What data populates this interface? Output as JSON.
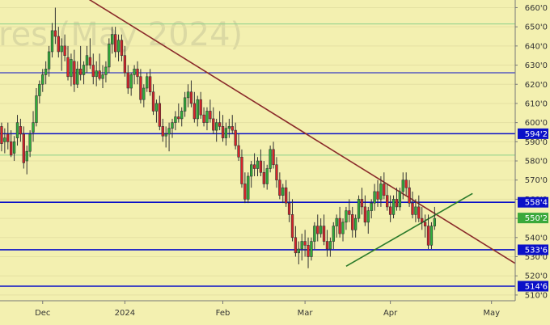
{
  "chart_data": {
    "type": "candlestick",
    "watermark": "res (May 2024)",
    "y_axis": {
      "ylim": [
        507,
        664
      ],
      "ticks": [
        "660'0",
        "650'0",
        "640'0",
        "630'0",
        "620'0",
        "610'0",
        "600'0",
        "590'0",
        "580'0",
        "570'0",
        "560'0",
        "550'0",
        "540'0",
        "530'0",
        "520'0",
        "510'0"
      ]
    },
    "x_axis": {
      "ticks": [
        {
          "label": "Dec",
          "bar": 13
        },
        {
          "label": "2024",
          "bar": 39
        },
        {
          "label": "Feb",
          "bar": 70
        },
        {
          "label": "Mar",
          "bar": 96
        },
        {
          "label": "Apr",
          "bar": 123
        },
        {
          "label": "May",
          "bar": 155
        }
      ],
      "bar_count": 163
    },
    "levels": [
      {
        "value": 594.2,
        "label": "594'2",
        "color": "#0a10c8",
        "badge": true
      },
      {
        "value": 558.4,
        "label": "558'4",
        "color": "#0a10c8",
        "badge": true
      },
      {
        "value": 533.6,
        "label": "533'6",
        "color": "#0a10c8",
        "badge": true
      },
      {
        "value": 514.6,
        "label": "514'6",
        "color": "#0a10c8",
        "badge": true
      },
      {
        "value": 626.0,
        "label": "",
        "color": "#0a10c8",
        "badge": false
      },
      {
        "value": 651.5,
        "label": "",
        "color": "#8ad08a",
        "badge": false
      },
      {
        "value": 583.0,
        "label": "",
        "color": "#8ad08a",
        "badge": false
      }
    ],
    "last_price": {
      "value": 550.2,
      "label": "550'2",
      "color": "#3aa83a"
    },
    "trendlines": [
      {
        "name": "resistance",
        "color": "#8a2a2a",
        "from": [
          27,
          665
        ],
        "to": [
          163,
          526
        ]
      },
      {
        "name": "support",
        "color": "#2a7a2a",
        "from": [
          109,
          525
        ],
        "to": [
          149,
          563
        ]
      }
    ],
    "series": [
      [
        -1,
        604,
        604,
        590,
        593
      ],
      [
        0,
        598,
        600,
        585,
        589
      ],
      [
        1,
        590,
        597,
        584,
        592
      ],
      [
        2,
        594,
        600,
        586,
        590
      ],
      [
        3,
        590,
        596,
        582,
        583
      ],
      [
        4,
        584,
        593,
        580,
        590
      ],
      [
        5,
        592,
        604,
        588,
        600
      ],
      [
        6,
        598,
        602,
        590,
        594
      ],
      [
        7,
        594,
        598,
        576,
        579
      ],
      [
        8,
        580,
        588,
        573,
        585
      ],
      [
        9,
        585,
        596,
        582,
        594
      ],
      [
        10,
        595,
        606,
        590,
        600
      ],
      [
        11,
        600,
        618,
        598,
        614
      ],
      [
        12,
        614,
        622,
        610,
        620
      ],
      [
        13,
        620,
        628,
        616,
        625
      ],
      [
        14,
        625,
        632,
        620,
        628
      ],
      [
        15,
        628,
        640,
        624,
        637
      ],
      [
        16,
        637,
        652,
        634,
        648
      ],
      [
        17,
        648,
        660,
        641,
        645
      ],
      [
        18,
        645,
        650,
        634,
        637
      ],
      [
        19,
        637,
        644,
        627,
        640
      ],
      [
        20,
        640,
        646,
        632,
        635
      ],
      [
        21,
        634,
        640,
        622,
        624
      ],
      [
        22,
        624,
        636,
        619,
        633
      ],
      [
        23,
        632,
        638,
        616,
        620
      ],
      [
        24,
        620,
        632,
        618,
        628
      ],
      [
        25,
        628,
        640,
        622,
        625
      ],
      [
        26,
        625,
        632,
        620,
        630
      ],
      [
        27,
        630,
        640,
        626,
        635
      ],
      [
        28,
        634,
        644,
        628,
        630
      ],
      [
        29,
        630,
        636,
        620,
        624
      ],
      [
        30,
        624,
        632,
        619,
        627
      ],
      [
        31,
        627,
        636,
        622,
        623
      ],
      [
        32,
        623,
        630,
        618,
        625
      ],
      [
        33,
        625,
        632,
        621,
        629
      ],
      [
        34,
        629,
        644,
        626,
        641
      ],
      [
        35,
        641,
        650,
        636,
        646
      ],
      [
        36,
        646,
        650,
        634,
        637
      ],
      [
        37,
        637,
        646,
        632,
        643
      ],
      [
        38,
        643,
        646,
        632,
        635
      ],
      [
        39,
        635,
        640,
        624,
        626
      ],
      [
        40,
        626,
        630,
        615,
        618
      ],
      [
        41,
        618,
        626,
        614,
        625
      ],
      [
        42,
        625,
        630,
        620,
        628
      ],
      [
        43,
        628,
        632,
        620,
        624
      ],
      [
        44,
        624,
        628,
        610,
        612
      ],
      [
        45,
        612,
        620,
        608,
        618
      ],
      [
        46,
        618,
        626,
        616,
        624
      ],
      [
        47,
        624,
        628,
        614,
        616
      ],
      [
        48,
        616,
        620,
        604,
        606
      ],
      [
        49,
        606,
        612,
        600,
        610
      ],
      [
        50,
        610,
        614,
        596,
        598
      ],
      [
        51,
        598,
        602,
        590,
        593
      ],
      [
        52,
        593,
        598,
        587,
        594
      ],
      [
        53,
        594,
        600,
        585,
        597
      ],
      [
        54,
        597,
        602,
        592,
        600
      ],
      [
        55,
        600,
        606,
        596,
        603
      ],
      [
        56,
        603,
        610,
        600,
        602
      ],
      [
        57,
        602,
        608,
        598,
        606
      ],
      [
        58,
        606,
        616,
        603,
        613
      ],
      [
        59,
        613,
        620,
        608,
        616
      ],
      [
        60,
        616,
        622,
        608,
        610
      ],
      [
        61,
        610,
        616,
        600,
        602
      ],
      [
        62,
        602,
        614,
        598,
        612
      ],
      [
        63,
        612,
        616,
        602,
        604
      ],
      [
        64,
        604,
        608,
        598,
        600
      ],
      [
        65,
        600,
        608,
        596,
        606
      ],
      [
        66,
        606,
        612,
        600,
        602
      ],
      [
        67,
        602,
        608,
        594,
        596
      ],
      [
        68,
        596,
        602,
        590,
        600
      ],
      [
        69,
        600,
        606,
        596,
        598
      ],
      [
        70,
        598,
        604,
        590,
        592
      ],
      [
        71,
        592,
        600,
        588,
        597
      ],
      [
        72,
        597,
        602,
        592,
        598
      ],
      [
        73,
        598,
        604,
        594,
        596
      ],
      [
        74,
        596,
        600,
        586,
        588
      ],
      [
        75,
        588,
        594,
        580,
        582
      ],
      [
        76,
        582,
        586,
        566,
        568
      ],
      [
        77,
        568,
        574,
        558,
        560
      ],
      [
        78,
        560,
        574,
        558,
        572
      ],
      [
        79,
        572,
        580,
        566,
        578
      ],
      [
        80,
        578,
        584,
        572,
        576
      ],
      [
        81,
        576,
        582,
        572,
        580
      ],
      [
        82,
        580,
        586,
        572,
        574
      ],
      [
        83,
        574,
        580,
        566,
        568
      ],
      [
        84,
        568,
        578,
        565,
        576
      ],
      [
        85,
        576,
        588,
        574,
        586
      ],
      [
        86,
        586,
        590,
        576,
        578
      ],
      [
        87,
        578,
        582,
        566,
        570
      ],
      [
        88,
        570,
        574,
        560,
        562
      ],
      [
        89,
        562,
        568,
        558,
        566
      ],
      [
        90,
        566,
        570,
        556,
        558
      ],
      [
        91,
        558,
        564,
        548,
        552
      ],
      [
        92,
        552,
        560,
        538,
        540
      ],
      [
        93,
        540,
        546,
        530,
        532
      ],
      [
        94,
        532,
        538,
        526,
        534
      ],
      [
        95,
        534,
        542,
        528,
        538
      ],
      [
        96,
        538,
        544,
        530,
        536
      ],
      [
        97,
        536,
        540,
        524,
        530
      ],
      [
        98,
        530,
        540,
        528,
        538
      ],
      [
        99,
        538,
        548,
        534,
        546
      ],
      [
        100,
        546,
        552,
        538,
        542
      ],
      [
        101,
        542,
        550,
        540,
        546
      ],
      [
        102,
        546,
        552,
        536,
        538
      ],
      [
        103,
        538,
        544,
        530,
        534
      ],
      [
        104,
        534,
        540,
        530,
        538
      ],
      [
        105,
        538,
        548,
        534,
        546
      ],
      [
        106,
        546,
        552,
        540,
        550
      ],
      [
        107,
        550,
        556,
        540,
        542
      ],
      [
        108,
        542,
        550,
        538,
        548
      ],
      [
        109,
        548,
        556,
        544,
        554
      ],
      [
        110,
        554,
        560,
        548,
        552
      ],
      [
        111,
        552,
        556,
        540,
        544
      ],
      [
        112,
        544,
        552,
        540,
        550
      ],
      [
        113,
        550,
        562,
        548,
        560
      ],
      [
        114,
        560,
        566,
        552,
        556
      ],
      [
        115,
        556,
        562,
        546,
        548
      ],
      [
        116,
        548,
        556,
        542,
        554
      ],
      [
        117,
        554,
        560,
        550,
        558
      ],
      [
        118,
        558,
        568,
        554,
        564
      ],
      [
        119,
        564,
        570,
        556,
        560
      ],
      [
        120,
        560,
        572,
        556,
        568
      ],
      [
        121,
        568,
        574,
        560,
        562
      ],
      [
        122,
        562,
        568,
        554,
        556
      ],
      [
        123,
        556,
        562,
        548,
        552
      ],
      [
        124,
        552,
        562,
        550,
        560
      ],
      [
        125,
        560,
        566,
        554,
        556
      ],
      [
        126,
        556,
        566,
        554,
        564
      ],
      [
        127,
        564,
        574,
        560,
        570
      ],
      [
        128,
        570,
        574,
        562,
        566
      ],
      [
        129,
        566,
        570,
        556,
        558
      ],
      [
        130,
        558,
        564,
        550,
        552
      ],
      [
        131,
        552,
        560,
        548,
        556
      ],
      [
        132,
        556,
        562,
        548,
        550
      ],
      [
        133,
        550,
        556,
        544,
        548
      ],
      [
        134,
        548,
        552,
        540,
        546
      ],
      [
        135,
        546,
        552,
        534,
        536
      ],
      [
        136,
        536,
        548,
        534,
        546
      ],
      [
        137,
        546,
        556,
        544,
        550
      ]
    ]
  }
}
